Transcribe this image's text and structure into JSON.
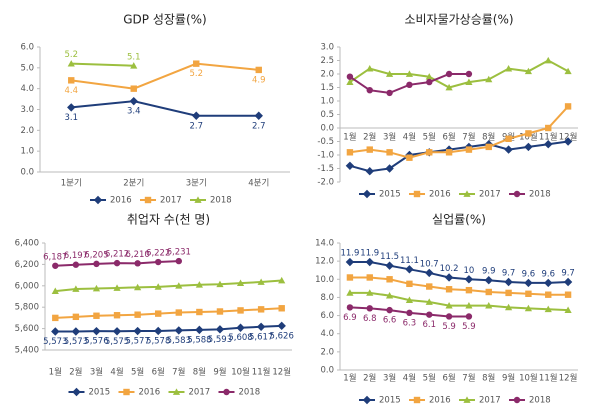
{
  "chart_data": [
    {
      "type": "line",
      "title": "GDP 성장률(%)",
      "categories": [
        "1분기",
        "2분기",
        "3분기",
        "4분기"
      ],
      "ylim": [
        0,
        6
      ],
      "yticks": [
        {
          "value": 0,
          "label": "0.0"
        },
        {
          "value": 1,
          "label": "1.0"
        },
        {
          "value": 2,
          "label": "2.0"
        },
        {
          "value": 3,
          "label": "3.0"
        },
        {
          "value": 4,
          "label": "4.0"
        },
        {
          "value": 5,
          "label": "5.0"
        },
        {
          "value": 6,
          "label": "6.0"
        }
      ],
      "legend": "bottom",
      "series": [
        {
          "name": "2016",
          "color": "#1f3d7a",
          "marker": "diamond",
          "label_position": "below",
          "values": [
            3.1,
            3.4,
            2.7,
            2.7
          ],
          "value_labels": [
            "3.1",
            "3.4",
            "2.7",
            "2.7"
          ]
        },
        {
          "name": "2017",
          "color": "#f2a541",
          "marker": "square",
          "label_position": "below",
          "values": [
            4.4,
            4.0,
            5.2,
            4.9
          ],
          "value_labels": [
            "4.4",
            null,
            "5.2",
            "4.9"
          ]
        },
        {
          "name": "2018",
          "color": "#9cbf3f",
          "marker": "triangle",
          "label_position": "above",
          "values": [
            5.2,
            5.1,
            null,
            null
          ],
          "value_labels": [
            "5.2",
            "5.1",
            null,
            null
          ]
        }
      ]
    },
    {
      "type": "line",
      "title": "소비자물가상승률(%)",
      "categories": [
        "1월",
        "2월",
        "3월",
        "4월",
        "5월",
        "6월",
        "7월",
        "8월",
        "9월",
        "10월",
        "11월",
        "12월"
      ],
      "ylim": [
        -2,
        3
      ],
      "yticks": [
        {
          "value": -2,
          "label": "-2.0"
        },
        {
          "value": -1.5,
          "label": "-1.5"
        },
        {
          "value": -1,
          "label": "-1.0"
        },
        {
          "value": -0.5,
          "label": "-0.5"
        },
        {
          "value": 0,
          "label": "0.0"
        },
        {
          "value": 0.5,
          "label": "0.5"
        },
        {
          "value": 1,
          "label": "1.0"
        },
        {
          "value": 1.5,
          "label": "1.5"
        },
        {
          "value": 2,
          "label": "2.0"
        },
        {
          "value": 2.5,
          "label": "2.5"
        },
        {
          "value": 3,
          "label": "3.0"
        }
      ],
      "legend": "bottom",
      "series": [
        {
          "name": "2015",
          "color": "#1f3d7a",
          "marker": "diamond",
          "values": [
            -1.4,
            -1.6,
            -1.5,
            -1.0,
            -0.9,
            -0.8,
            -0.7,
            -0.6,
            -0.8,
            -0.7,
            -0.6,
            -0.5
          ]
        },
        {
          "name": "2016",
          "color": "#f2a541",
          "marker": "square",
          "values": [
            -0.9,
            -0.8,
            -0.9,
            -1.1,
            -0.9,
            -0.9,
            -0.8,
            -0.7,
            -0.4,
            -0.2,
            0.0,
            0.8
          ]
        },
        {
          "name": "2017",
          "color": "#9cbf3f",
          "marker": "triangle",
          "values": [
            1.7,
            2.2,
            2.0,
            2.0,
            1.9,
            1.5,
            1.7,
            1.8,
            2.2,
            2.1,
            2.5,
            2.1
          ]
        },
        {
          "name": "2018",
          "color": "#8b2a6a",
          "marker": "circle",
          "values": [
            1.9,
            1.4,
            1.3,
            1.6,
            1.7,
            2.0,
            2.0,
            null,
            null,
            null,
            null,
            null
          ]
        }
      ]
    },
    {
      "type": "line",
      "title": "취업자 수(천 명)",
      "categories": [
        "1월",
        "2월",
        "3월",
        "4월",
        "5월",
        "6월",
        "7월",
        "8월",
        "9월",
        "10월",
        "11월",
        "12월"
      ],
      "ylim": [
        5400,
        6400
      ],
      "yticks": [
        {
          "value": 5400,
          "label": "5,400"
        },
        {
          "value": 5600,
          "label": "5,600"
        },
        {
          "value": 5800,
          "label": "5,800"
        },
        {
          "value": 6000,
          "label": "6,000"
        },
        {
          "value": 6200,
          "label": "6,200"
        },
        {
          "value": 6400,
          "label": "6,400"
        }
      ],
      "legend": "bottom",
      "series": [
        {
          "name": "2015",
          "color": "#1f3d7a",
          "marker": "diamond",
          "label_position": "below",
          "values": [
            5573,
            5573,
            5576,
            5575,
            5577,
            5578,
            5583,
            5588,
            5593,
            5608,
            5617,
            5626
          ],
          "value_labels": [
            "5,573",
            "5,573",
            "5,576",
            "5,575",
            "5,577",
            "5,578",
            "5,583",
            "5,588",
            "5,593",
            "5,608",
            "5,617",
            "5,626"
          ]
        },
        {
          "name": "2016",
          "color": "#f2a541",
          "marker": "square",
          "values": [
            5700,
            5710,
            5720,
            5725,
            5730,
            5740,
            5750,
            5755,
            5760,
            5770,
            5780,
            5790
          ]
        },
        {
          "name": "2017",
          "color": "#9cbf3f",
          "marker": "triangle",
          "values": [
            5950,
            5970,
            5975,
            5980,
            5985,
            5990,
            6000,
            6010,
            6015,
            6025,
            6035,
            6050
          ]
        },
        {
          "name": "2018",
          "color": "#8b2a6a",
          "marker": "circle",
          "label_position": "above",
          "values": [
            6187,
            6197,
            6205,
            6212,
            6210,
            6222,
            6231,
            null,
            null,
            null,
            null,
            null
          ],
          "value_labels": [
            "6,187",
            "6,197",
            "6,205",
            "6,212",
            "6,210",
            "6,222",
            "6,231",
            null,
            null,
            null,
            null,
            null
          ]
        }
      ]
    },
    {
      "type": "line",
      "title": "실업률(%)",
      "categories": [
        "1월",
        "2월",
        "3월",
        "4월",
        "5월",
        "6월",
        "7월",
        "8월",
        "9월",
        "10월",
        "11월",
        "12월"
      ],
      "ylim": [
        0,
        14
      ],
      "yticks": [
        {
          "value": 0,
          "label": "0.0"
        },
        {
          "value": 2,
          "label": "2.0"
        },
        {
          "value": 4,
          "label": "4.0"
        },
        {
          "value": 6,
          "label": "6.0"
        },
        {
          "value": 8,
          "label": "8.0"
        },
        {
          "value": 10,
          "label": "10.0"
        },
        {
          "value": 12,
          "label": "12.0"
        },
        {
          "value": 14,
          "label": "14.0"
        }
      ],
      "legend": "bottom",
      "series": [
        {
          "name": "2015",
          "color": "#1f3d7a",
          "marker": "diamond",
          "label_position": "above",
          "values": [
            11.9,
            11.9,
            11.5,
            11.1,
            10.7,
            10.2,
            10,
            9.9,
            9.7,
            9.6,
            9.6,
            9.7
          ]
        },
        {
          "name": "2016",
          "color": "#f2a541",
          "marker": "square",
          "values": [
            10.2,
            10.2,
            10.0,
            9.5,
            9.2,
            8.9,
            8.8,
            8.6,
            8.5,
            8.4,
            8.3,
            8.3
          ]
        },
        {
          "name": "2017",
          "color": "#9cbf3f",
          "marker": "triangle",
          "values": [
            8.5,
            8.5,
            8.2,
            7.7,
            7.5,
            7.1,
            7.1,
            7.1,
            6.9,
            6.8,
            6.7,
            6.6
          ]
        },
        {
          "name": "2018",
          "color": "#8b2a6a",
          "marker": "circle",
          "label_position": "below",
          "values": [
            6.9,
            6.8,
            6.6,
            6.3,
            6.1,
            5.9,
            5.9,
            null,
            null,
            null,
            null,
            null
          ]
        }
      ]
    }
  ]
}
